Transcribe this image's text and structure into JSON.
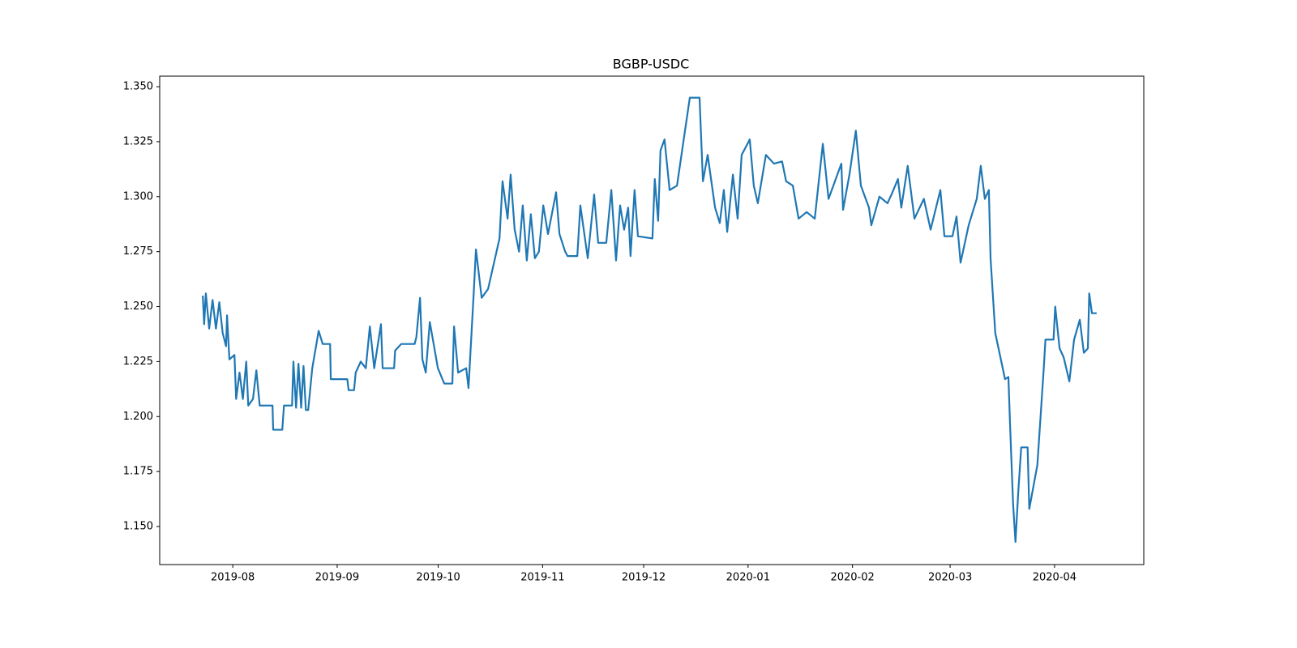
{
  "chart_data": {
    "type": "line",
    "title": "BGBP-USDC",
    "x": [
      18100.1,
      18100.5,
      18101,
      18102,
      18103,
      18104,
      18105,
      18106,
      18107,
      18107.3,
      18108,
      18109.5,
      18110,
      18111,
      18112,
      18113,
      18113.6,
      18115,
      18116,
      18117,
      18118,
      18120.8,
      18121,
      18123.7,
      18124.2,
      18126.6,
      18127,
      18127.8,
      18128.5,
      18129.3,
      18130,
      18130.7,
      18131.4,
      18132.6,
      18134.5,
      18135.7,
      18137.9,
      18138.1,
      18143,
      18143.4,
      18145,
      18145.5,
      18147,
      18148.5,
      18149.7,
      18151,
      18153,
      18153.5,
      18156.9,
      18157.2,
      18159,
      18163,
      18163.5,
      18164.6,
      18165.3,
      18166.3,
      18167.5,
      18169.9,
      18171.8,
      18174.2,
      18174.7,
      18175.9,
      18178.3,
      18179,
      18179.6,
      18180.5,
      18181.2,
      18182.9,
      18184.8,
      18188.2,
      18189.1,
      18190.6,
      18191.5,
      18192.7,
      18194,
      18195.1,
      18196.3,
      18197.5,
      18198.7,
      18199.9,
      18201.2,
      18202.6,
      18205,
      18206,
      18207.7,
      18208.4,
      18211.3,
      18212.2,
      18214.4,
      18216.3,
      18217.5,
      18219.9,
      18221.4,
      18222.8,
      18224,
      18225.2,
      18226.4,
      18227.1,
      18228.3,
      18229.3,
      18233.6,
      18234.3,
      18235.3,
      18236,
      18237.2,
      18238.7,
      18240.9,
      18244.7,
      18247.6,
      18247.8,
      18248.6,
      18250,
      18252.2,
      18253.6,
      18254.8,
      18255.8,
      18257.5,
      18258.9,
      18260.1,
      18262.5,
      18263.7,
      18264.9,
      18267.3,
      18269.7,
      18272.1,
      18273.3,
      18275.3,
      18277,
      18279.4,
      18281.8,
      18284.2,
      18285.9,
      18289.7,
      18290.2,
      18292.1,
      18294,
      18295.5,
      18297.9,
      18298.6,
      18301,
      18303.4,
      18304.6,
      18306.5,
      18307.5,
      18309.4,
      18311.4,
      18314.2,
      18316.2,
      18319.1,
      18320.3,
      18322.7,
      18323.9,
      18325.1,
      18327.5,
      18329.9,
      18331.1,
      18332.3,
      18333.5,
      18334,
      18335.4,
      18338.3,
      18339.3,
      18339.8,
      18340.7,
      18341.4,
      18342.2,
      18343.1,
      18345,
      18345.5,
      18346.7,
      18347.9,
      18349.8,
      18350.3,
      18352.7,
      18353.2,
      18354.5,
      18355.7,
      18357.4,
      18358.8,
      18360.5,
      18361.7,
      18362.9,
      18363.3,
      18364.1,
      18365.5
    ],
    "values": [
      1.255,
      1.242,
      1.256,
      1.24,
      1.253,
      1.24,
      1.252,
      1.238,
      1.232,
      1.246,
      1.226,
      1.228,
      1.208,
      1.22,
      1.208,
      1.225,
      1.205,
      1.208,
      1.221,
      1.205,
      1.205,
      1.205,
      1.194,
      1.194,
      1.205,
      1.205,
      1.225,
      1.204,
      1.224,
      1.204,
      1.223,
      1.203,
      1.203,
      1.222,
      1.239,
      1.233,
      1.233,
      1.217,
      1.217,
      1.212,
      1.212,
      1.22,
      1.225,
      1.222,
      1.241,
      1.222,
      1.242,
      1.222,
      1.222,
      1.23,
      1.233,
      1.233,
      1.236,
      1.254,
      1.226,
      1.22,
      1.243,
      1.222,
      1.215,
      1.215,
      1.241,
      1.22,
      1.222,
      1.213,
      1.23,
      1.255,
      1.276,
      1.254,
      1.258,
      1.281,
      1.307,
      1.29,
      1.31,
      1.285,
      1.275,
      1.296,
      1.271,
      1.292,
      1.272,
      1.275,
      1.296,
      1.283,
      1.302,
      1.283,
      1.275,
      1.273,
      1.273,
      1.296,
      1.272,
      1.301,
      1.279,
      1.279,
      1.303,
      1.271,
      1.296,
      1.285,
      1.295,
      1.273,
      1.303,
      1.282,
      1.281,
      1.308,
      1.289,
      1.321,
      1.326,
      1.303,
      1.305,
      1.345,
      1.345,
      1.337,
      1.307,
      1.319,
      1.295,
      1.288,
      1.303,
      1.284,
      1.31,
      1.29,
      1.319,
      1.326,
      1.305,
      1.297,
      1.319,
      1.315,
      1.316,
      1.307,
      1.305,
      1.29,
      1.293,
      1.29,
      1.324,
      1.299,
      1.315,
      1.294,
      1.31,
      1.33,
      1.305,
      1.295,
      1.287,
      1.3,
      1.297,
      1.301,
      1.308,
      1.295,
      1.314,
      1.29,
      1.299,
      1.285,
      1.303,
      1.282,
      1.282,
      1.291,
      1.27,
      1.287,
      1.299,
      1.314,
      1.299,
      1.303,
      1.272,
      1.238,
      1.217,
      1.218,
      1.196,
      1.16,
      1.143,
      1.165,
      1.186,
      1.186,
      1.158,
      1.168,
      1.178,
      1.222,
      1.235,
      1.235,
      1.25,
      1.231,
      1.227,
      1.216,
      1.235,
      1.244,
      1.229,
      1.231,
      1.256,
      1.247,
      1.247
    ],
    "color": "#1f77b4",
    "xlim": [
      18087.3,
      18379.5
    ],
    "ylim": [
      1.1327,
      1.3548
    ],
    "xticks": [
      {
        "value": 18109,
        "label": "2019-08"
      },
      {
        "value": 18140,
        "label": "2019-09"
      },
      {
        "value": 18170,
        "label": "2019-10"
      },
      {
        "value": 18201,
        "label": "2019-11"
      },
      {
        "value": 18231,
        "label": "2019-12"
      },
      {
        "value": 18262,
        "label": "2020-01"
      },
      {
        "value": 18293,
        "label": "2020-02"
      },
      {
        "value": 18322,
        "label": "2020-03"
      },
      {
        "value": 18353,
        "label": "2020-04"
      }
    ],
    "yticks": [
      {
        "value": 1.15,
        "label": "1.150"
      },
      {
        "value": 1.175,
        "label": "1.175"
      },
      {
        "value": 1.2,
        "label": "1.200"
      },
      {
        "value": 1.225,
        "label": "1.225"
      },
      {
        "value": 1.25,
        "label": "1.250"
      },
      {
        "value": 1.275,
        "label": "1.275"
      },
      {
        "value": 1.3,
        "label": "1.300"
      },
      {
        "value": 1.325,
        "label": "1.325"
      },
      {
        "value": 1.35,
        "label": "1.350"
      }
    ],
    "grid": false
  }
}
